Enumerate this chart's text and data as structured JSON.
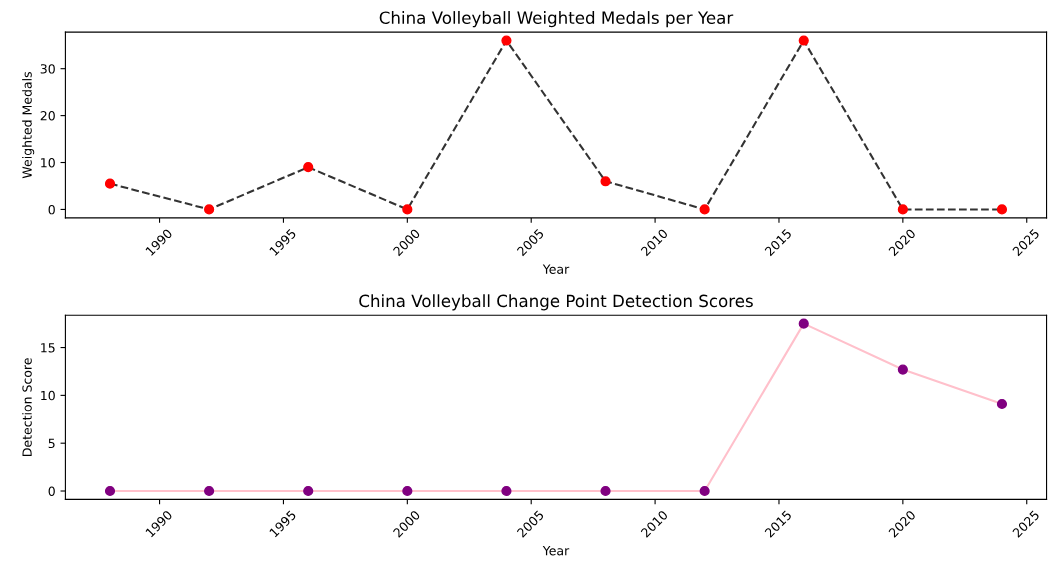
{
  "chart_data": [
    {
      "type": "line",
      "title": "China Volleyball Weighted Medals per Year",
      "xlabel": "Year",
      "ylabel": "Weighted Medals",
      "x": [
        1988,
        1992,
        1996,
        2000,
        2004,
        2008,
        2012,
        2016,
        2020,
        2024
      ],
      "series": [
        {
          "color": "#333333",
          "line_style": "dashed",
          "values": [
            5.5,
            0,
            9,
            0,
            36,
            6,
            0,
            36,
            0,
            0
          ]
        },
        {
          "type": "scatter",
          "color": "#ff0000",
          "marker": "circle",
          "values": [
            5.5,
            0,
            9,
            0,
            36,
            6,
            0,
            36,
            0,
            0
          ]
        }
      ],
      "xlim": [
        1986.2,
        2025.8
      ],
      "xticks": [
        1990,
        1995,
        2000,
        2005,
        2010,
        2015,
        2020,
        2025
      ],
      "ylim": [
        -1.8,
        37.8
      ],
      "yticks": [
        0,
        10,
        20,
        30
      ],
      "grid": false,
      "legend": false
    },
    {
      "type": "line",
      "title": "China Volleyball Change Point Detection Scores",
      "xlabel": "Year",
      "ylabel": "Detection Score",
      "x": [
        1988,
        1992,
        1996,
        2000,
        2004,
        2008,
        2012,
        2016,
        2020,
        2024
      ],
      "series": [
        {
          "color": "#ffc0cb",
          "line_style": "solid",
          "values": [
            0,
            0,
            0,
            0,
            0,
            0,
            0,
            17.5,
            12.7,
            9.1
          ]
        },
        {
          "type": "scatter",
          "color": "#800080",
          "marker": "circle",
          "values": [
            0,
            0,
            0,
            0,
            0,
            0,
            0,
            17.5,
            12.7,
            9.1
          ]
        }
      ],
      "xlim": [
        1986.2,
        2025.8
      ],
      "xticks": [
        1990,
        1995,
        2000,
        2005,
        2010,
        2015,
        2020,
        2025
      ],
      "ylim": [
        -0.875,
        18.375
      ],
      "yticks": [
        0,
        5,
        10,
        15
      ],
      "grid": false,
      "legend": false
    }
  ]
}
